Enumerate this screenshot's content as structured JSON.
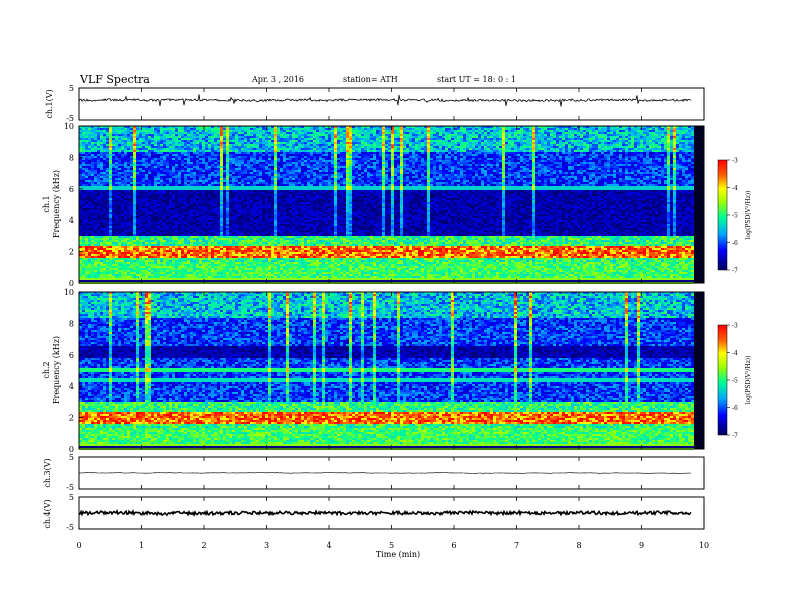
{
  "header": {
    "title": "VLF  Spectra",
    "date": "Apr. 3  , 2016",
    "station": "station= ATH",
    "start": "start  UT  =   18: 0  : 1"
  },
  "chart_data": [
    {
      "id": "ch1-voltage",
      "type": "line",
      "ylabel": "ch.1(V)",
      "ylim": [
        -5,
        5
      ],
      "y_ticks": [
        "5",
        "-5"
      ],
      "trace_baseline": 1.2,
      "trace_noise": 0.35
    },
    {
      "id": "ch1-spectrogram",
      "type": "heatmap",
      "ylabel": "ch.1",
      "ylabel2": "Frequency (kHz)",
      "ylim": [
        0,
        10
      ],
      "y_ticks": [
        "0",
        "2",
        "4",
        "6",
        "8",
        "10"
      ],
      "dark_band_khz": [
        3.0,
        6.0
      ],
      "hot_band_khz": [
        1.6,
        2.4
      ],
      "colorbar": {
        "label": "log(PSD(V²/Hz))",
        "range": [
          -7,
          -3
        ],
        "ticks": [
          "-3",
          "-4",
          "-5",
          "-6",
          "-7"
        ]
      }
    },
    {
      "id": "ch2-spectrogram",
      "type": "heatmap",
      "ylabel": "ch.2",
      "ylabel2": "Frequency (kHz)",
      "ylim": [
        0,
        10
      ],
      "y_ticks": [
        "0",
        "2",
        "4",
        "6",
        "8",
        "10"
      ],
      "dark_band_khz": [
        5.8,
        6.6
      ],
      "hot_band_khz": [
        1.6,
        2.4
      ],
      "colorbar": {
        "label": "log(PSD(V²/Hz))",
        "range": [
          -7,
          -3
        ],
        "ticks": [
          "-3",
          "-4",
          "-5",
          "-6",
          "-7"
        ]
      }
    },
    {
      "id": "ch3-voltage",
      "type": "line",
      "ylabel": "ch.3(V)",
      "ylim": [
        -5,
        5
      ],
      "y_ticks": [
        "5",
        "-5"
      ],
      "trace_baseline": 0.0,
      "trace_noise": 0.03
    },
    {
      "id": "ch4-voltage",
      "type": "line",
      "ylabel": "ch.4(V)",
      "ylim": [
        -5,
        5
      ],
      "y_ticks": [
        "5",
        "-5"
      ],
      "trace_baseline": 0.0,
      "trace_noise": 0.5
    }
  ],
  "x_axis": {
    "label": "Time  (min)",
    "xlim": [
      0,
      10
    ],
    "data_end": 9.8,
    "ticks": [
      "0",
      "1",
      "2",
      "3",
      "4",
      "5",
      "6",
      "7",
      "8",
      "9",
      "10"
    ]
  }
}
